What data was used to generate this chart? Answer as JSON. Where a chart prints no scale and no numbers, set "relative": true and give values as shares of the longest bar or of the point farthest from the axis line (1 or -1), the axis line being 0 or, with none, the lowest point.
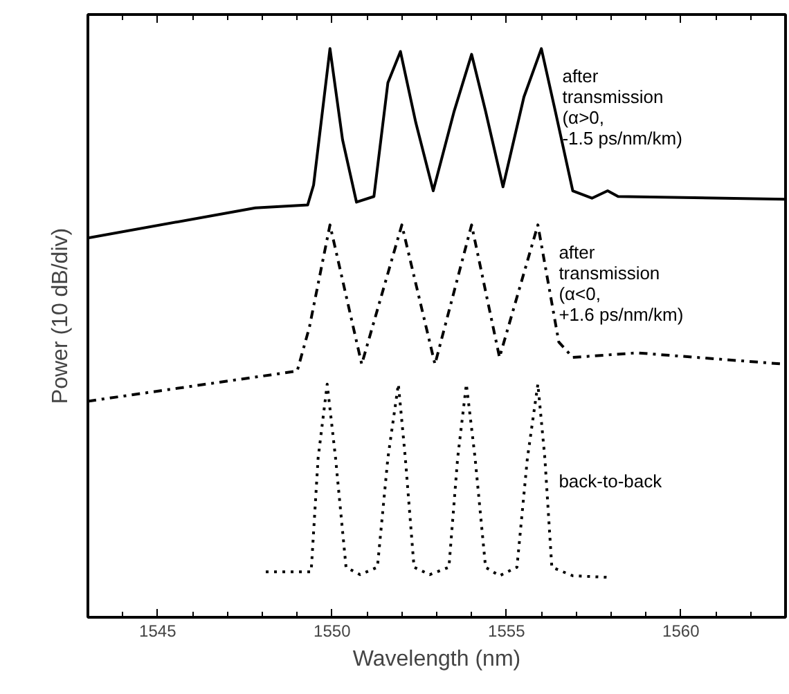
{
  "chart_data": {
    "type": "line",
    "relative": true,
    "xlabel": "Wavelength (nm)",
    "ylabel": "Power (10 dB/div)",
    "xlim": [
      1543,
      1563
    ],
    "xticks": [
      1545,
      1550,
      1555,
      1560
    ],
    "grid": false,
    "legend": false,
    "marker": "none",
    "series": [
      {
        "name": "after transmission (α>0, -1.5 ps/nm/km)",
        "color": "#000000",
        "line_style": "solid",
        "x": [
          1543.0,
          1547.8,
          1549.3,
          1549.47,
          1549.94,
          1550.3,
          1550.7,
          1551.2,
          1551.6,
          1551.96,
          1552.4,
          1552.9,
          1553.5,
          1554.0,
          1554.4,
          1554.9,
          1555.5,
          1556.0,
          1556.4,
          1556.9,
          1557.45,
          1557.9,
          1558.2,
          1563.0
        ],
        "values": [
          0.667,
          0.72,
          0.725,
          0.76,
          1.0,
          0.84,
          0.73,
          0.74,
          0.94,
          0.995,
          0.87,
          0.75,
          0.89,
          0.99,
          0.89,
          0.757,
          0.915,
          1.0,
          0.89,
          0.75,
          0.737,
          0.75,
          0.74,
          0.735
        ]
      },
      {
        "name": "after transmission (α<0, +1.6 ps/nm/km)",
        "color": "#000000",
        "line_style": "dashdot",
        "x": [
          1543.0,
          1549.0,
          1549.35,
          1549.94,
          1550.85,
          1552.0,
          1552.95,
          1554.0,
          1554.8,
          1555.9,
          1556.5,
          1556.9,
          1558.75,
          1563.0
        ],
        "values": [
          0.38,
          0.433,
          0.51,
          0.69,
          0.445,
          0.69,
          0.445,
          0.69,
          0.457,
          0.69,
          0.484,
          0.457,
          0.465,
          0.445
        ]
      },
      {
        "name": "back-to-back",
        "color": "#000000",
        "line_style": "dotted",
        "x": [
          1548.1,
          1549.4,
          1549.6,
          1549.86,
          1550.1,
          1550.4,
          1550.8,
          1551.3,
          1551.6,
          1551.9,
          1552.1,
          1552.35,
          1552.8,
          1553.35,
          1553.6,
          1553.85,
          1554.1,
          1554.4,
          1554.8,
          1555.3,
          1555.6,
          1555.9,
          1556.1,
          1556.3,
          1556.9,
          1558.0
        ],
        "values": [
          0.08,
          0.08,
          0.28,
          0.41,
          0.28,
          0.088,
          0.075,
          0.088,
          0.28,
          0.41,
          0.28,
          0.088,
          0.075,
          0.088,
          0.28,
          0.41,
          0.28,
          0.088,
          0.073,
          0.088,
          0.28,
          0.41,
          0.28,
          0.088,
          0.073,
          0.07
        ]
      }
    ]
  }
}
